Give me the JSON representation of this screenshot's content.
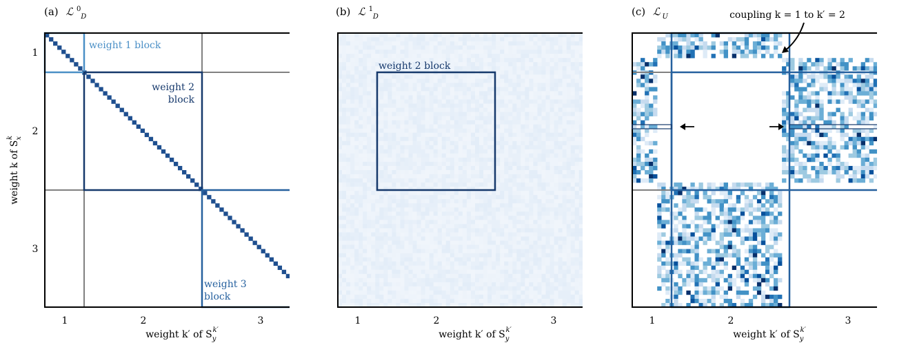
{
  "panels": [
    {
      "letter": "(a)",
      "symbol": "ℒ",
      "sup": "0",
      "sub": "D",
      "ylabel": "weight k of S",
      "ylabel_sup": "k",
      "ylabel_sub": "x",
      "xlabel": "weight k′ of S",
      "xlabel_sup": "k′",
      "xlabel_sub": "y",
      "x_ticks": [
        "1",
        "2",
        "3"
      ],
      "y_ticks": [
        "1",
        "2",
        "3"
      ],
      "annotations": {
        "w1": "weight 1 block",
        "w2_line1": "weight 2",
        "w2_line2": "block",
        "w3_line1": "weight 3",
        "w3_line2": "block"
      }
    },
    {
      "letter": "(b)",
      "symbol": "ℒ",
      "sup": "1",
      "sub": "D",
      "xlabel": "weight k′ of S",
      "xlabel_sup": "k′",
      "xlabel_sub": "y",
      "x_ticks": [
        "1",
        "2",
        "3"
      ],
      "annotations": {
        "w2": "weight 2 block"
      }
    },
    {
      "letter": "(c)",
      "symbol": "ℒ",
      "sub": "U",
      "xlabel": "weight k′ of S",
      "xlabel_sup": "k′",
      "xlabel_sub": "y",
      "x_ticks": [
        "1",
        "2",
        "3"
      ],
      "annotations": {
        "coupling": "coupling k = 1 to k′ = 2"
      }
    }
  ],
  "colors": {
    "w1": "#4a8fc6",
    "w2": "#15386b",
    "w3": "#25609e",
    "grid": "#808080",
    "diag": "#1f4f8f"
  },
  "block_sizes": [
    6,
    30,
    30
  ]
}
